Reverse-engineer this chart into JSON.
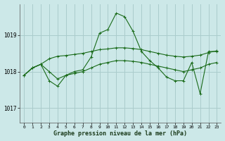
{
  "title": "Graphe pression niveau de la mer (hPa)",
  "background_color": "#cce8e8",
  "grid_color": "#aacccc",
  "line_color": "#1a6b1a",
  "xlim": [
    -0.5,
    23.5
  ],
  "ylim": [
    1016.6,
    1019.85
  ],
  "yticks": [
    1017,
    1018,
    1019
  ],
  "xticks": [
    0,
    1,
    2,
    3,
    4,
    5,
    6,
    7,
    8,
    9,
    10,
    11,
    12,
    13,
    14,
    15,
    16,
    17,
    18,
    19,
    20,
    21,
    22,
    23
  ],
  "series1_x": [
    0,
    1,
    2,
    3,
    4,
    5,
    6,
    7,
    8,
    9,
    10,
    11,
    12,
    13,
    14,
    15,
    16,
    17,
    18,
    19,
    20,
    21,
    22,
    23
  ],
  "series1_y": [
    1017.9,
    1018.1,
    1018.2,
    1017.75,
    1017.6,
    1017.9,
    1018.0,
    1018.05,
    1018.4,
    1019.05,
    1019.15,
    1019.6,
    1019.5,
    1019.1,
    1018.55,
    1018.3,
    1018.1,
    1017.85,
    1017.75,
    1017.75,
    1018.25,
    1017.4,
    1018.55,
    1018.55
  ],
  "series2_x": [
    0,
    1,
    2,
    3,
    4,
    5,
    6,
    7,
    8,
    9,
    10,
    11,
    12,
    13,
    14,
    15,
    16,
    17,
    18,
    19,
    20,
    21,
    22,
    23
  ],
  "series2_y": [
    1017.9,
    1018.1,
    1018.2,
    1018.35,
    1018.42,
    1018.44,
    1018.47,
    1018.5,
    1018.55,
    1018.6,
    1018.62,
    1018.65,
    1018.65,
    1018.63,
    1018.6,
    1018.55,
    1018.5,
    1018.45,
    1018.42,
    1018.4,
    1018.42,
    1018.45,
    1018.52,
    1018.57
  ],
  "series3_x": [
    0,
    1,
    2,
    3,
    4,
    5,
    6,
    7,
    8,
    9,
    10,
    11,
    12,
    13,
    14,
    15,
    16,
    17,
    18,
    19,
    20,
    21,
    22,
    23
  ],
  "series3_y": [
    1017.9,
    1018.1,
    1018.2,
    1018.0,
    1017.8,
    1017.9,
    1017.95,
    1018.0,
    1018.1,
    1018.2,
    1018.25,
    1018.3,
    1018.3,
    1018.28,
    1018.25,
    1018.2,
    1018.15,
    1018.1,
    1018.05,
    1018.0,
    1018.05,
    1018.1,
    1018.2,
    1018.25
  ]
}
